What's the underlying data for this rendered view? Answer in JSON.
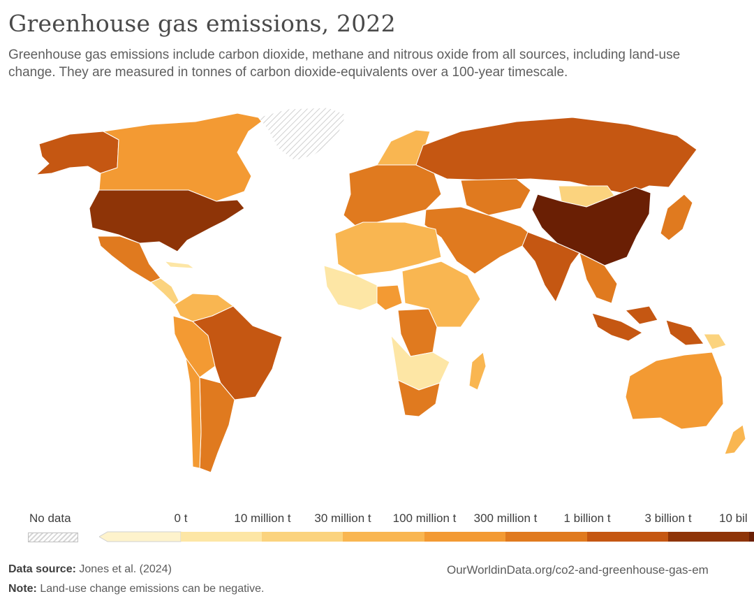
{
  "title": "Greenhouse gas emissions, 2022",
  "subtitle": "Greenhouse gas emissions include carbon dioxide, methane and nitrous oxide from all sources, including land-use change. They are measured in tonnes of carbon dioxide-equivalents over a 100-year timescale.",
  "legend": {
    "no_data_label": "No data",
    "ticks": [
      "0 t",
      "10 million t",
      "30 million t",
      "100 million t",
      "300 million t",
      "1 billion t",
      "3 billion t",
      "10 bil"
    ],
    "colors": [
      "#fef3cc",
      "#fde6a5",
      "#fbd37e",
      "#f9b651",
      "#f39a33",
      "#e07a1f",
      "#c55712",
      "#8e3407"
    ],
    "bin_colors": [
      "#fef3cc",
      "#fde6a5",
      "#fbd37e",
      "#f9b651",
      "#f39a33",
      "#e07a1f",
      "#c55712",
      "#8e3407",
      "#6a1f04"
    ]
  },
  "footer": {
    "source_label": "Data source:",
    "source_text": "Jones et al. (2024)",
    "note_label": "Note:",
    "note_text": "Land-use change emissions can be negative.",
    "url": "OurWorldinData.org/co2-and-greenhouse-gas-em"
  },
  "map": {
    "regions": [
      {
        "name": "Alaska",
        "color": "#c55712"
      },
      {
        "name": "Canada",
        "color": "#f39a33"
      },
      {
        "name": "Greenland",
        "color": "nodata"
      },
      {
        "name": "United States",
        "color": "#8e3407"
      },
      {
        "name": "Mexico",
        "color": "#e07a1f"
      },
      {
        "name": "Central America",
        "color": "#fbd37e"
      },
      {
        "name": "Caribbean",
        "color": "#fde6a5"
      },
      {
        "name": "Colombia/Venezuela",
        "color": "#f9b651"
      },
      {
        "name": "Peru/Bolivia",
        "color": "#f39a33"
      },
      {
        "name": "Brazil",
        "color": "#c55712"
      },
      {
        "name": "Argentina",
        "color": "#e07a1f"
      },
      {
        "name": "Chile",
        "color": "#f39a33"
      },
      {
        "name": "Western Europe",
        "color": "#e07a1f"
      },
      {
        "name": "Scandinavia",
        "color": "#f9b651"
      },
      {
        "name": "Russia",
        "color": "#c55712"
      },
      {
        "name": "Kazakhstan",
        "color": "#e07a1f"
      },
      {
        "name": "Mongolia",
        "color": "#fbd37e"
      },
      {
        "name": "China",
        "color": "#6a1f04"
      },
      {
        "name": "India",
        "color": "#c55712"
      },
      {
        "name": "Middle East",
        "color": "#e07a1f"
      },
      {
        "name": "North Africa",
        "color": "#f9b651"
      },
      {
        "name": "West Africa",
        "color": "#fde6a5"
      },
      {
        "name": "Nigeria",
        "color": "#f39a33"
      },
      {
        "name": "DR Congo",
        "color": "#e07a1f"
      },
      {
        "name": "East Africa",
        "color": "#f9b651"
      },
      {
        "name": "Southern Africa",
        "color": "#fde6a5"
      },
      {
        "name": "South Africa",
        "color": "#e07a1f"
      },
      {
        "name": "Madagascar",
        "color": "#f9b651"
      },
      {
        "name": "Southeast Asia",
        "color": "#e07a1f"
      },
      {
        "name": "Indonesia",
        "color": "#c55712"
      },
      {
        "name": "Japan",
        "color": "#e07a1f"
      },
      {
        "name": "Australia",
        "color": "#f39a33"
      },
      {
        "name": "New Zealand",
        "color": "#f9b651"
      },
      {
        "name": "Papua New Guinea",
        "color": "#fbd37e"
      }
    ]
  }
}
